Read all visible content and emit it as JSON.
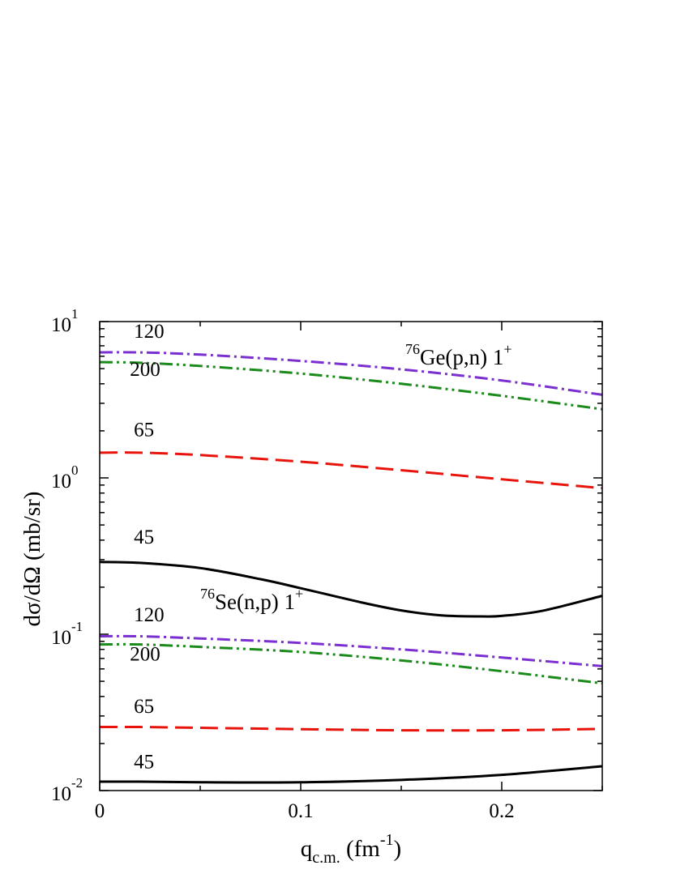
{
  "chart_data": {
    "type": "line",
    "xlabel": {
      "main": "q",
      "sub": "c.m.",
      "unit_open": " (fm",
      "unit_sup": "-1",
      "unit_close": ")"
    },
    "ylabel": "dσ/dΩ (mb/sr)",
    "xlim": [
      0,
      0.25
    ],
    "ylim": [
      0.01,
      10
    ],
    "yscale": "log",
    "grid": false,
    "x_ticks": [
      {
        "value": 0,
        "label": "0"
      },
      {
        "value": 0.1,
        "label": "0.1"
      },
      {
        "value": 0.2,
        "label": "0.2"
      }
    ],
    "y_ticks": [
      {
        "value": 10,
        "base": "10",
        "exp": "1"
      },
      {
        "value": 1,
        "base": "10",
        "exp": "0"
      },
      {
        "value": 0.1,
        "base": "10",
        "exp": "-1"
      },
      {
        "value": 0.01,
        "base": "10",
        "exp": "-2"
      }
    ],
    "annotations": [
      {
        "sup": "76",
        "text": "Ge(p,n) 1",
        "tail_sup": "+",
        "x": 0.152,
        "y": 5.3
      },
      {
        "sup": "76",
        "text": "Se(n,p) 1",
        "tail_sup": "+",
        "x": 0.05,
        "y": 0.145
      }
    ],
    "series": [
      {
        "group": "Ge(p,n)",
        "label": "120",
        "color": "#7b2fd0",
        "dash": "dashdot",
        "x": [
          0,
          0.02,
          0.05,
          0.1,
          0.15,
          0.2,
          0.25
        ],
        "y": [
          6.35,
          6.35,
          6.15,
          5.6,
          4.95,
          4.2,
          3.4
        ],
        "label_at": {
          "x": 0.017,
          "y": 7.9
        }
      },
      {
        "group": "Ge(p,n)",
        "label": "200",
        "color": "#1a8a1a",
        "dash": "dashdotdot",
        "x": [
          0,
          0.02,
          0.05,
          0.1,
          0.15,
          0.2,
          0.25
        ],
        "y": [
          5.5,
          5.45,
          5.2,
          4.65,
          4.0,
          3.35,
          2.75
        ],
        "label_at": {
          "x": 0.015,
          "y": 4.5
        }
      },
      {
        "group": "Ge(p,n)",
        "label": "65",
        "color": "#e8140c",
        "dash": "dash",
        "x": [
          0,
          0.02,
          0.05,
          0.1,
          0.15,
          0.2,
          0.25
        ],
        "y": [
          1.45,
          1.45,
          1.4,
          1.27,
          1.12,
          0.98,
          0.86
        ],
        "label_at": {
          "x": 0.017,
          "y": 1.85
        }
      },
      {
        "group": "Ge(p,n)",
        "label": "45",
        "color": "#000000",
        "dash": "solid",
        "x": [
          0,
          0.02,
          0.05,
          0.08,
          0.1,
          0.13,
          0.15,
          0.17,
          0.19,
          0.2,
          0.22,
          0.25
        ],
        "y": [
          0.29,
          0.286,
          0.265,
          0.225,
          0.197,
          0.16,
          0.142,
          0.132,
          0.13,
          0.131,
          0.141,
          0.176
        ],
        "label_at": {
          "x": 0.017,
          "y": 0.38
        }
      },
      {
        "group": "Se(n,p)",
        "label": "120",
        "color": "#7b2fd0",
        "dash": "dashdot",
        "x": [
          0,
          0.02,
          0.05,
          0.1,
          0.15,
          0.2,
          0.25
        ],
        "y": [
          0.097,
          0.097,
          0.094,
          0.088,
          0.08,
          0.071,
          0.0625
        ],
        "label_at": {
          "x": 0.017,
          "y": 0.121
        }
      },
      {
        "group": "Se(n,p)",
        "label": "200",
        "color": "#1a8a1a",
        "dash": "dashdotdot",
        "x": [
          0,
          0.02,
          0.05,
          0.1,
          0.15,
          0.2,
          0.25
        ],
        "y": [
          0.086,
          0.086,
          0.083,
          0.077,
          0.068,
          0.058,
          0.0485
        ],
        "label_at": {
          "x": 0.015,
          "y": 0.068
        }
      },
      {
        "group": "Se(n,p)",
        "label": "65",
        "color": "#e8140c",
        "dash": "dash",
        "x": [
          0,
          0.02,
          0.05,
          0.1,
          0.15,
          0.2,
          0.25
        ],
        "y": [
          0.0255,
          0.0255,
          0.0252,
          0.0247,
          0.0243,
          0.0243,
          0.0248
        ],
        "label_at": {
          "x": 0.017,
          "y": 0.0315
        }
      },
      {
        "group": "Se(n,p)",
        "label": "45",
        "color": "#000000",
        "dash": "solid",
        "x": [
          0,
          0.02,
          0.05,
          0.1,
          0.15,
          0.2,
          0.25
        ],
        "y": [
          0.0114,
          0.0114,
          0.0113,
          0.0113,
          0.0117,
          0.0126,
          0.0143
        ],
        "label_at": {
          "x": 0.017,
          "y": 0.0139
        }
      }
    ]
  }
}
